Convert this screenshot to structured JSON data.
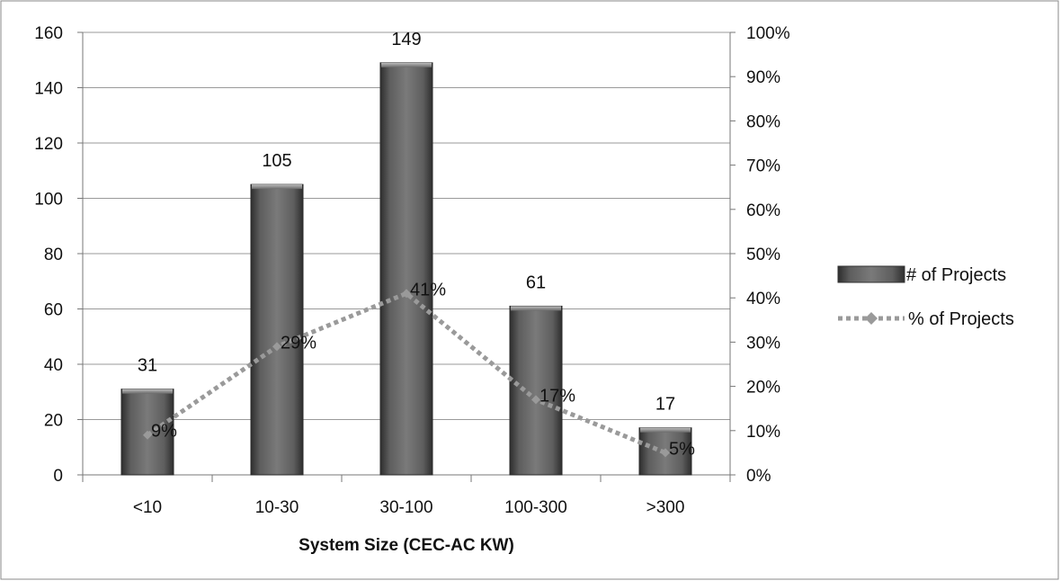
{
  "chart_data": {
    "type": "bar",
    "categories": [
      "<10",
      "10-30",
      "30-100",
      "100-300",
      ">300"
    ],
    "series": [
      {
        "name": "# of Projects",
        "type": "bar",
        "axis": "left",
        "values": [
          31,
          105,
          149,
          61,
          17
        ],
        "labels": [
          "31",
          "105",
          "149",
          "61",
          "17"
        ]
      },
      {
        "name": "% of Projects",
        "type": "line",
        "axis": "right",
        "style": "dotted",
        "values": [
          9,
          29,
          41,
          17,
          5
        ],
        "labels": [
          "9%",
          "29%",
          "41%",
          "17%",
          "5%"
        ]
      }
    ],
    "xlabel": "System Size (CEC-AC KW)",
    "ylim": [
      0,
      160
    ],
    "y_ticks": [
      "0",
      "20",
      "40",
      "60",
      "80",
      "100",
      "120",
      "140",
      "160"
    ],
    "y2lim": [
      0,
      100
    ],
    "y2_ticks": [
      "0%",
      "10%",
      "20%",
      "30%",
      "40%",
      "50%",
      "60%",
      "70%",
      "80%",
      "90%",
      "100%"
    ],
    "grid": true,
    "legend_position": "right",
    "colors": {
      "bar": "#6e6e6e",
      "bar_dark": "#3c3c3c",
      "line": "#9a9a9a",
      "grid": "#9a9a9a"
    }
  }
}
